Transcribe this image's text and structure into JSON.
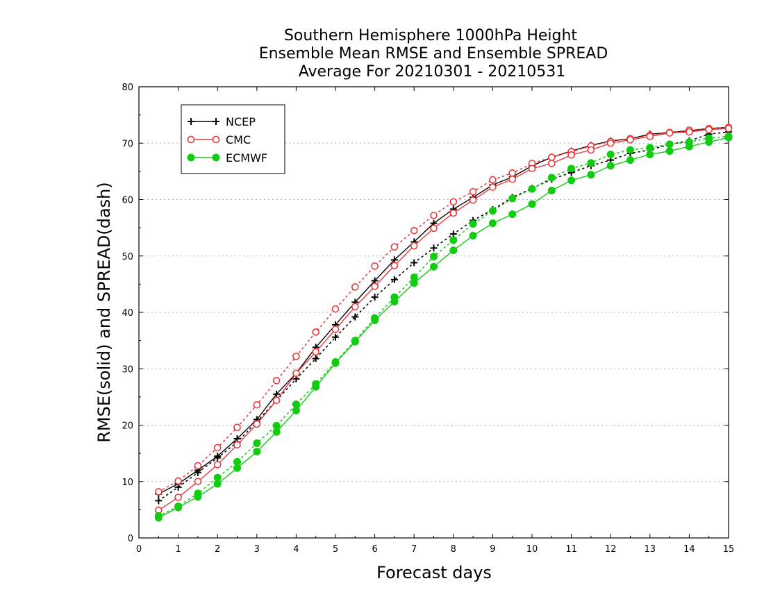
{
  "chart_data": {
    "type": "line",
    "title_lines": [
      "Southern Hemisphere 1000hPa Height",
      "Ensemble Mean RMSE and Ensemble SPREAD",
      "Average For 20210301 - 20210531"
    ],
    "xlabel": "Forecast days",
    "ylabel": "RMSE(solid) and SPREAD(dash)",
    "xlim": [
      0,
      15
    ],
    "ylim": [
      0,
      80
    ],
    "xticks": [
      "0",
      "1",
      "2",
      "3",
      "4",
      "5",
      "6",
      "7",
      "8",
      "9",
      "10",
      "11",
      "12",
      "13",
      "14",
      "15"
    ],
    "yticks": [
      "0",
      "10",
      "20",
      "30",
      "40",
      "50",
      "60",
      "70",
      "80"
    ],
    "grid": "horizontal dotted",
    "legend_position": "top-left",
    "x": [
      0.5,
      1,
      1.5,
      2,
      2.5,
      3,
      3.5,
      4,
      4.5,
      5,
      5.5,
      6,
      6.5,
      7,
      7.5,
      8,
      8.5,
      9,
      9.5,
      10,
      10.5,
      11,
      11.5,
      12,
      12.5,
      13,
      13.5,
      14,
      14.5,
      15
    ],
    "series": [
      {
        "name": "NCEP",
        "color": "#000000",
        "marker": "plus",
        "rmse": [
          7.8,
          9.6,
          12.0,
          14.5,
          17.6,
          21.0,
          25.5,
          29.2,
          33.8,
          37.8,
          41.8,
          45.6,
          49.3,
          52.5,
          55.8,
          58.3,
          60.4,
          62.6,
          64.0,
          66.0,
          67.5,
          68.6,
          69.6,
          70.4,
          70.8,
          71.6,
          71.9,
          72.2,
          72.6,
          72.8
        ],
        "spread": [
          6.6,
          9.0,
          11.6,
          14.2,
          17.0,
          20.6,
          24.4,
          28.2,
          31.8,
          35.6,
          39.2,
          42.7,
          45.8,
          48.8,
          51.4,
          53.9,
          56.3,
          58.2,
          60.4,
          62.0,
          63.6,
          64.8,
          66.0,
          67.0,
          68.2,
          68.8,
          69.8,
          70.4,
          71.6,
          72.0
        ]
      },
      {
        "name": "CMC",
        "color": "#e8393c",
        "marker": "circle",
        "rmse": [
          4.9,
          7.2,
          10.0,
          13.0,
          16.5,
          20.2,
          24.4,
          29.2,
          33.0,
          37.0,
          41.0,
          44.6,
          48.3,
          51.8,
          54.9,
          57.6,
          59.9,
          62.2,
          63.6,
          65.5,
          66.4,
          67.9,
          68.8,
          70.0,
          70.6,
          71.2,
          71.8,
          72.0,
          72.4,
          72.6
        ],
        "spread": [
          8.2,
          10.1,
          12.8,
          16.0,
          19.6,
          23.6,
          27.9,
          32.2,
          36.5,
          40.6,
          44.5,
          48.2,
          51.6,
          54.5,
          57.2,
          59.6,
          61.4,
          63.5,
          64.7,
          66.4,
          67.5,
          68.5,
          69.5,
          70.3,
          70.8,
          71.4,
          71.9,
          72.3,
          72.6,
          72.8
        ]
      },
      {
        "name": "ECMWF",
        "color": "#11cc11",
        "marker": "filled-circle",
        "rmse": [
          3.6,
          5.4,
          7.3,
          9.6,
          12.4,
          15.3,
          18.8,
          22.6,
          26.8,
          31.0,
          34.8,
          38.6,
          41.9,
          45.2,
          48.1,
          51.0,
          53.6,
          55.8,
          57.4,
          59.2,
          61.6,
          63.4,
          64.4,
          66.0,
          67.0,
          68.0,
          68.6,
          69.4,
          70.2,
          71.0
        ],
        "spread": [
          3.9,
          5.6,
          7.9,
          10.7,
          13.5,
          16.8,
          19.9,
          23.7,
          27.3,
          31.2,
          35.0,
          39.0,
          42.7,
          46.2,
          49.9,
          52.8,
          55.7,
          58.0,
          60.2,
          61.9,
          63.9,
          65.5,
          66.5,
          68.0,
          68.8,
          69.2,
          69.8,
          70.2,
          70.9,
          71.2
        ]
      }
    ]
  }
}
